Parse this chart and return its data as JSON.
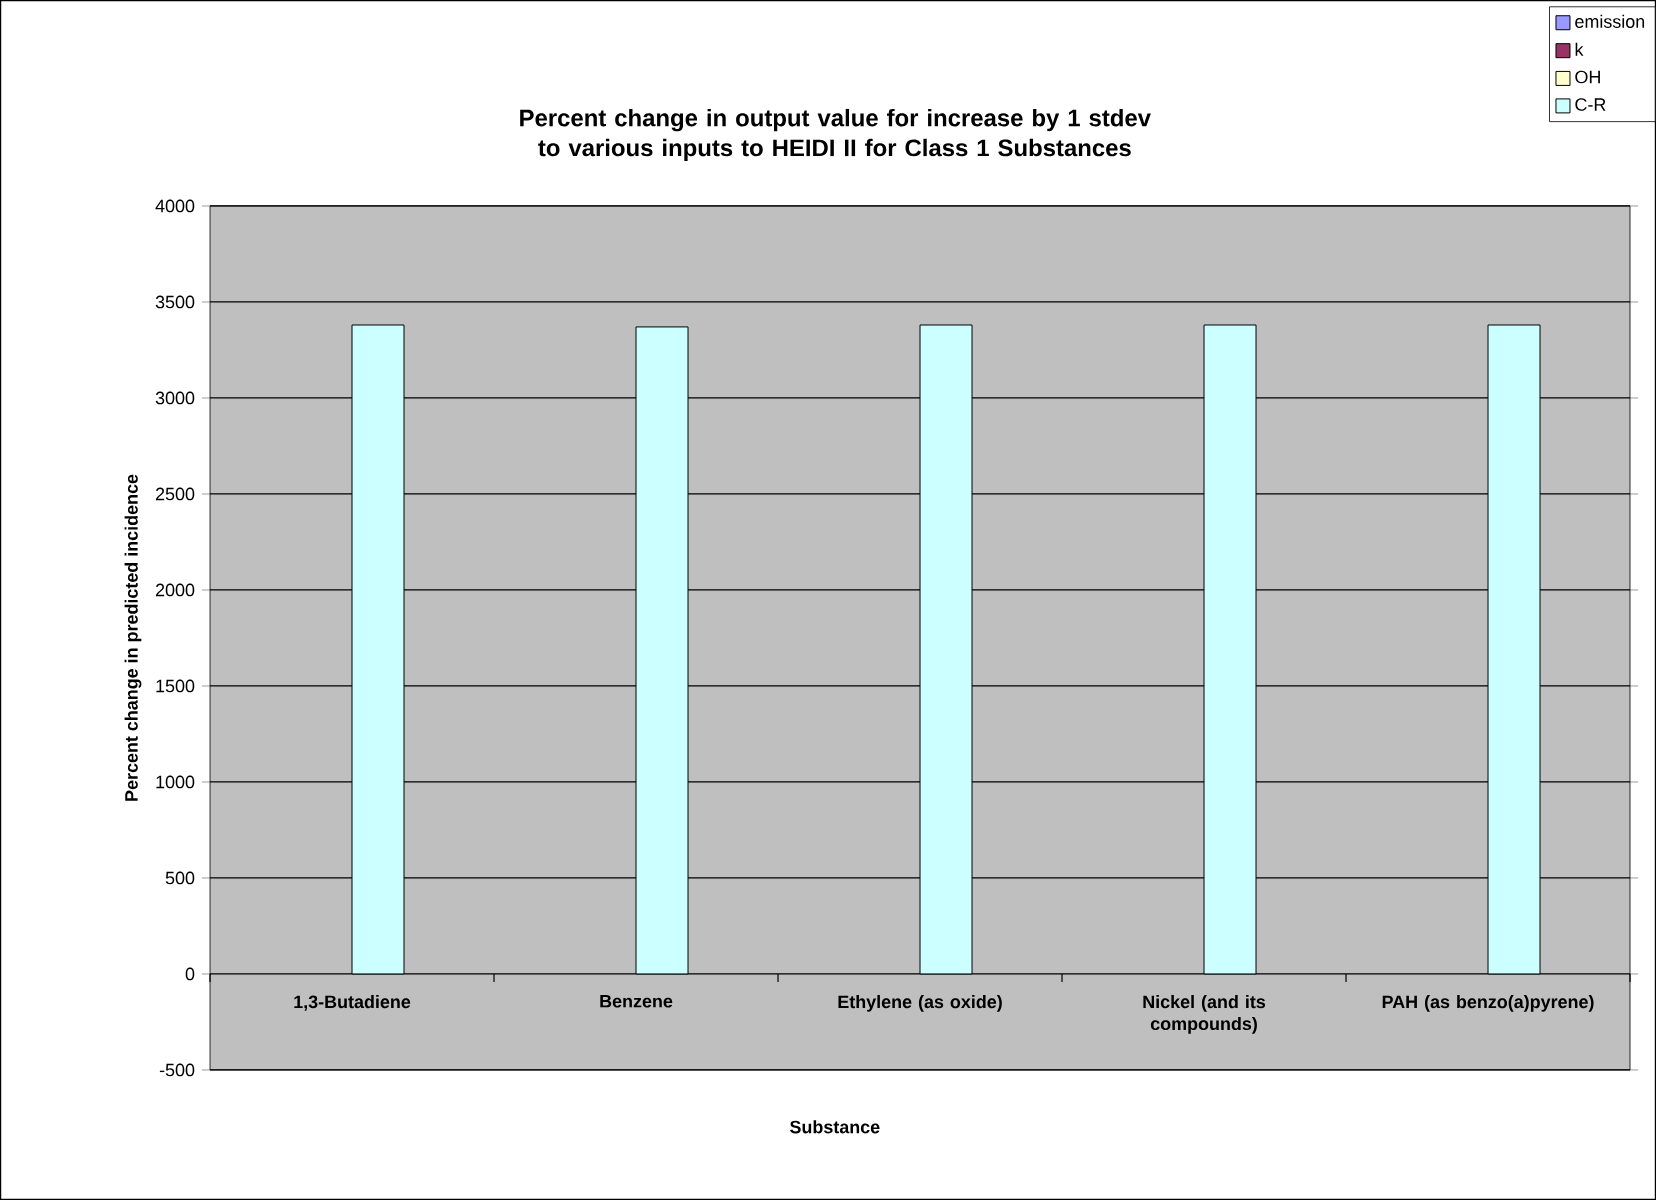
{
  "chart_data": {
    "type": "bar",
    "title": "Percent change in output value for increase by 1 stdev to various inputs to HEIDI II for Class 1 Substances",
    "xlabel": "Substance",
    "ylabel": "Percent change in predicted incidence",
    "categories": [
      "1,3-Butadiene",
      "Benzene",
      "Ethylene (as oxide)",
      "Nickel (and its compounds)",
      "PAH (as benzo(a)pyrene)"
    ],
    "series": [
      {
        "name": "emission",
        "color": "#9999ff",
        "values": [
          null,
          null,
          null,
          null,
          null
        ]
      },
      {
        "name": "k",
        "color": "#993366",
        "values": [
          null,
          null,
          null,
          null,
          null
        ]
      },
      {
        "name": "OH",
        "color": "#ffffcc",
        "values": [
          null,
          null,
          null,
          null,
          null
        ]
      },
      {
        "name": "C-R",
        "color": "#ccffff",
        "values": [
          3380,
          3370,
          3380,
          3380,
          3380
        ]
      }
    ],
    "ylim": [
      -500,
      4000
    ],
    "yticks": [
      -500,
      0,
      500,
      1000,
      1500,
      2000,
      2500,
      3000,
      3500,
      4000
    ],
    "grid": "y",
    "legend": "top right"
  }
}
